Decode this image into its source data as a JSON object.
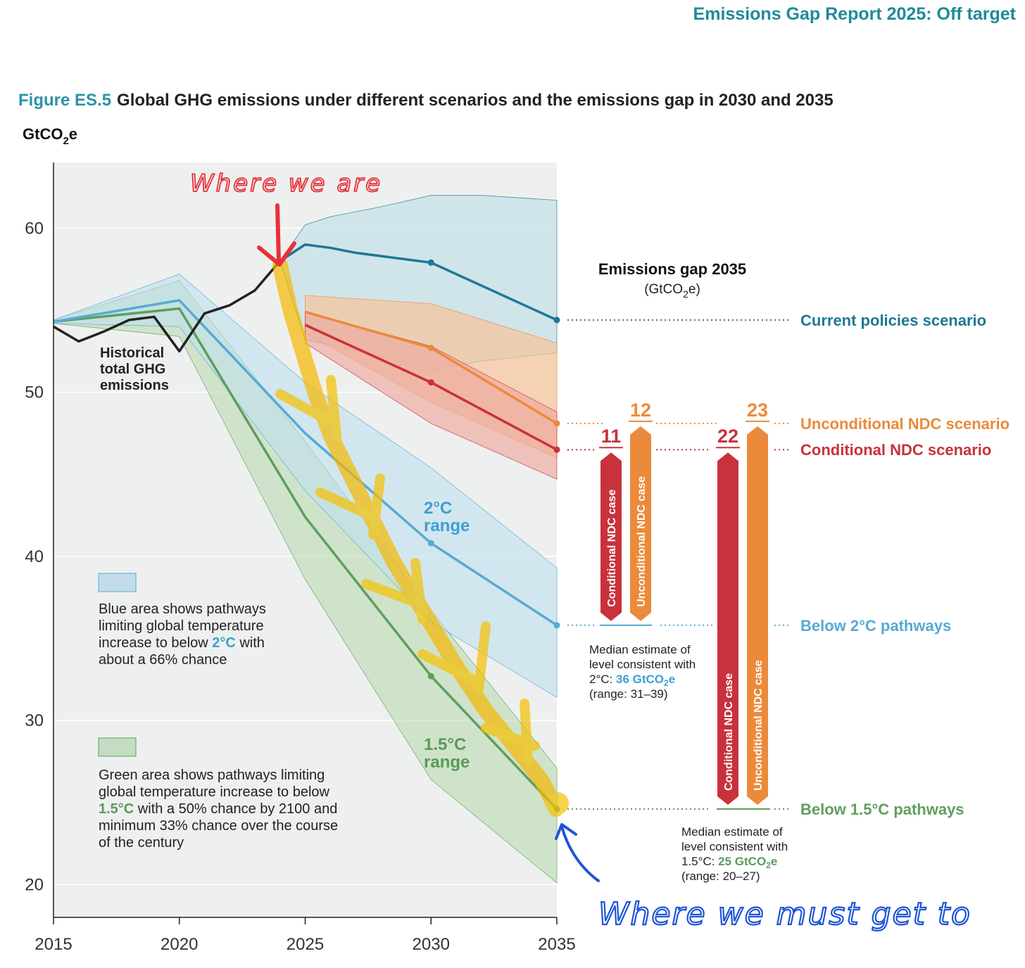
{
  "header": {
    "report_title": "Emissions Gap Report 2025: Off target"
  },
  "figure": {
    "label": "Figure ES.5",
    "title": "Global GHG emissions under different scenarios and the emissions gap in 2030 and 2035"
  },
  "annotations": {
    "where_we_are": "Where we are",
    "where_we_must_get_to": "Where we must get to"
  },
  "colors": {
    "current": "#1e7896",
    "unconditional": "#eb8a3a",
    "conditional": "#c8323c",
    "two_deg": "#56aad4",
    "one_five_deg": "#5f9e5e",
    "historical": "#222222"
  },
  "chart_data": {
    "type": "line",
    "title": "Global GHG emissions under different scenarios and the emissions gap in 2030 and 2035",
    "ylabel_parts": [
      "GtCO",
      "2",
      "e"
    ],
    "xlim": [
      2015,
      2035
    ],
    "ylim": [
      18,
      64
    ],
    "x_ticks": [
      "2015",
      "2020",
      "2025",
      "2030",
      "2035"
    ],
    "y_ticks": [
      "20",
      "30",
      "40",
      "50",
      "60"
    ],
    "historical": {
      "name": "Historical total GHG emissions",
      "label_lines": [
        "Historical",
        "total GHG",
        "emissions"
      ],
      "x": [
        2015,
        2016,
        2017,
        2018,
        2019,
        2020,
        2021,
        2022,
        2023,
        2024
      ],
      "y": [
        54.0,
        53.1,
        53.7,
        54.4,
        54.6,
        52.5,
        54.8,
        55.3,
        56.2,
        58.0
      ]
    },
    "series": [
      {
        "name": "Current policies scenario",
        "key": "current",
        "x": [
          2024,
          2025,
          2026,
          2027,
          2028,
          2029,
          2030,
          2035
        ],
        "y": [
          58.0,
          59.0,
          58.8,
          58.5,
          58.3,
          58.1,
          57.9,
          54.4
        ],
        "band_x": [
          2024,
          2025,
          2026,
          2028,
          2030,
          2032,
          2035
        ],
        "band_high": [
          58.0,
          60.2,
          60.7,
          61.3,
          62.0,
          62.0,
          61.7
        ],
        "band_low": [
          58.0,
          53.2,
          52.9,
          52.2,
          51.4,
          51.9,
          52.4
        ]
      },
      {
        "name": "Unconditional NDC scenario",
        "key": "unconditional",
        "x": [
          2025,
          2030,
          2035
        ],
        "y": [
          54.9,
          52.7,
          48.1
        ],
        "band_x": [
          2025,
          2030,
          2035
        ],
        "band_high": [
          55.9,
          55.4,
          53.0
        ],
        "band_low": [
          53.6,
          49.4,
          46.0
        ]
      },
      {
        "name": "Conditional NDC scenario",
        "key": "conditional",
        "x": [
          2025,
          2030,
          2035
        ],
        "y": [
          54.1,
          50.6,
          46.5
        ],
        "band_x": [
          2025,
          2030,
          2035
        ],
        "band_high": [
          54.9,
          52.8,
          48.8
        ],
        "band_low": [
          53.0,
          48.1,
          44.7
        ]
      },
      {
        "name": "Below 2°C pathways",
        "key": "two_deg",
        "x": [
          2015,
          2020,
          2025,
          2030,
          2035
        ],
        "y": [
          54.3,
          55.6,
          47.5,
          40.8,
          35.8
        ],
        "band_x": [
          2015,
          2020,
          2025,
          2030,
          2035
        ],
        "band_high": [
          54.4,
          57.2,
          50.6,
          45.4,
          39.3
        ],
        "band_low": [
          54.2,
          54.0,
          44.0,
          36.0,
          31.4
        ]
      },
      {
        "name": "Below 1.5°C pathways",
        "key": "one_five_deg",
        "x": [
          2015,
          2020,
          2025,
          2030,
          2035
        ],
        "y": [
          54.3,
          55.1,
          42.4,
          32.7,
          24.6
        ],
        "band_x": [
          2015,
          2020,
          2025,
          2030,
          2035
        ],
        "band_high": [
          54.4,
          56.8,
          47.0,
          36.7,
          27.1
        ],
        "band_low": [
          54.2,
          53.4,
          38.6,
          26.4,
          20.1
        ]
      }
    ],
    "range_labels": {
      "two_deg": [
        "2°C",
        "range"
      ],
      "one_five_deg": [
        "1.5°C",
        "range"
      ]
    },
    "emissions_gap_2035": {
      "title": "Emissions gap 2035",
      "unit_parts": [
        "(GtCO",
        "2",
        "e)"
      ],
      "vs_2c": [
        {
          "case": "Conditional NDC case",
          "value": "11",
          "key": "conditional",
          "top": 46.5,
          "bottom": 35.8
        },
        {
          "case": "Unconditional NDC case",
          "value": "12",
          "key": "unconditional",
          "top": 48.1,
          "bottom": 35.8
        }
      ],
      "vs_15c": [
        {
          "case": "Conditional NDC case",
          "value": "22",
          "key": "conditional",
          "top": 46.5,
          "bottom": 24.6
        },
        {
          "case": "Unconditional NDC case",
          "value": "23",
          "key": "unconditional",
          "top": 48.1,
          "bottom": 24.6
        }
      ],
      "median_2c": {
        "lines": [
          "Median estimate of",
          "level consistent with",
          "2°C: "
        ],
        "value": "36 GtCO",
        "sub": "2",
        "suffix": "e",
        "range": "(range: 31–39)"
      },
      "median_15c": {
        "lines": [
          "Median estimate of",
          "level consistent with",
          "1.5°C: "
        ],
        "value": "25 GtCO",
        "sub": "2",
        "suffix": "e",
        "range": "(range: 20–27)"
      }
    },
    "legend": {
      "blue": {
        "lines": [
          "Blue area shows pathways",
          "limiting global temperature",
          "increase to below ",
          "about a 66% chance"
        ],
        "highlight": "2°C",
        "after": " with"
      },
      "green": {
        "lines": [
          "Green area shows pathways limiting",
          "global temperature increase to below",
          "",
          "minimum 33% chance over the course",
          "of the century"
        ],
        "highlight": "1.5°C",
        "after": " with a 50% chance by 2100 and"
      }
    }
  }
}
